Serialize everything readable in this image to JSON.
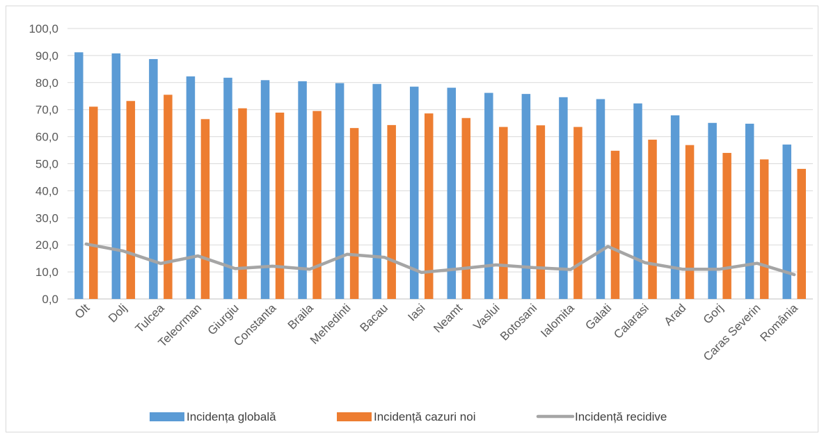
{
  "chart_data": {
    "type": "bar",
    "title": "",
    "xlabel": "",
    "ylabel": "",
    "ylim": [
      0,
      100
    ],
    "y_ticks": [
      "0,0",
      "10,0",
      "20,0",
      "30,0",
      "40,0",
      "50,0",
      "60,0",
      "70,0",
      "80,0",
      "90,0",
      "100,0"
    ],
    "grid": true,
    "legend_position": "bottom",
    "categories": [
      "Olt",
      "Dolj",
      "Tulcea",
      "Teleorman",
      "Giurgiu",
      "Constanta",
      "Braila",
      "Mehedinti",
      "Bacau",
      "Iasi",
      "Neamt",
      "Vaslui",
      "Botosani",
      "Ialomita",
      "Galati",
      "Calarasi",
      "Arad",
      "Gorj",
      "Caras Severin",
      "România"
    ],
    "series": [
      {
        "name": "Incidența globală",
        "type": "bar",
        "color": "#5B9BD5",
        "values": [
          91.2,
          90.8,
          88.7,
          82.3,
          81.8,
          80.9,
          80.5,
          79.8,
          79.5,
          78.5,
          78.1,
          76.2,
          75.8,
          74.6,
          73.9,
          72.3,
          67.9,
          65.1,
          64.8,
          57.1
        ]
      },
      {
        "name": "Incidență cazuri noi",
        "type": "bar",
        "color": "#ED7D31",
        "values": [
          71.1,
          73.2,
          75.5,
          66.5,
          70.5,
          68.9,
          69.5,
          63.2,
          64.3,
          68.6,
          66.9,
          63.6,
          64.2,
          63.6,
          54.8,
          58.9,
          56.9,
          54.0,
          51.6,
          48.1
        ]
      },
      {
        "name": "Incidență recidive",
        "type": "line",
        "color": "#A5A5A5",
        "values": [
          20.3,
          17.7,
          13.1,
          15.9,
          11.2,
          12.1,
          11.0,
          16.5,
          15.4,
          9.8,
          11.1,
          12.6,
          11.6,
          10.9,
          19.4,
          13.4,
          11.0,
          11.0,
          13.2,
          9.0
        ]
      }
    ]
  }
}
